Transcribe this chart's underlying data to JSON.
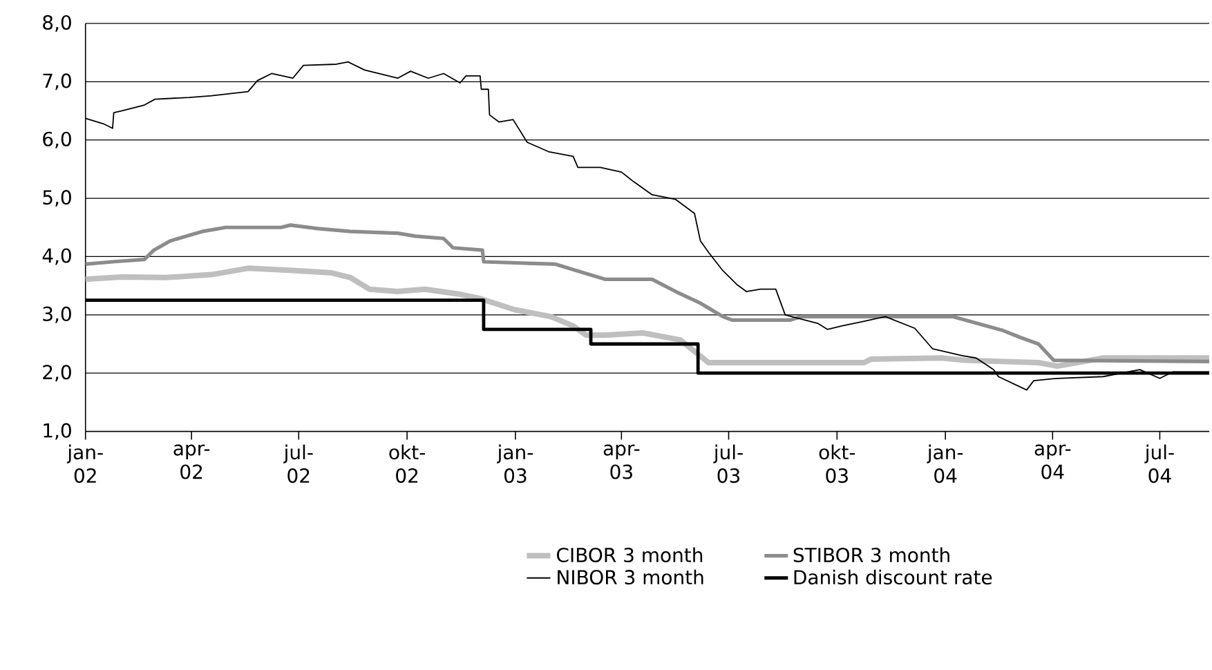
{
  "chart_data": {
    "type": "line",
    "xlim": [
      "2002-01-01",
      "2004-08-12"
    ],
    "ylim": [
      1,
      8
    ],
    "xticks": [
      {
        "value": "2002-01-01",
        "label": "jan-02"
      },
      {
        "value": "2002-04-01",
        "label": "apr-02"
      },
      {
        "value": "2002-07-01",
        "label": "jul-02"
      },
      {
        "value": "2002-10-01",
        "label": "okt-02"
      },
      {
        "value": "2003-01-01",
        "label": "jan-03"
      },
      {
        "value": "2003-04-01",
        "label": "apr-03"
      },
      {
        "value": "2003-07-01",
        "label": "jul-03"
      },
      {
        "value": "2003-10-01",
        "label": "okt-03"
      },
      {
        "value": "2004-01-01",
        "label": "jan-04"
      },
      {
        "value": "2004-04-01",
        "label": "apr-04"
      },
      {
        "value": "2004-07-01",
        "label": "jul-04"
      }
    ],
    "yticks": [
      {
        "value": 1,
        "label": "1,0"
      },
      {
        "value": 2,
        "label": "2,0"
      },
      {
        "value": 3,
        "label": "3,0"
      },
      {
        "value": 4,
        "label": "4,0"
      },
      {
        "value": 5,
        "label": "5,0"
      },
      {
        "value": 6,
        "label": "6,0"
      },
      {
        "value": 7,
        "label": "7,0"
      },
      {
        "value": 8,
        "label": "8,0"
      }
    ],
    "grid": "y",
    "legend": "bottom",
    "line_style": "solid",
    "marker": "none",
    "series": [
      {
        "name": "CIBOR 3 month",
        "color": "#bfbfbf",
        "x": [
          "2002-01-01",
          "2002-02-01",
          "2002-03-10",
          "2002-04-18",
          "2002-05-19",
          "2002-06-28",
          "2002-07-29",
          "2002-08-14",
          "2002-08-30",
          "2002-09-23",
          "2002-10-16",
          "2002-11-13",
          "2002-12-02",
          "2002-12-31",
          "2003-01-31",
          "2003-02-19",
          "2003-03-02",
          "2003-03-18",
          "2003-04-19",
          "2003-05-21",
          "2003-06-04",
          "2003-06-14",
          "2003-10-24",
          "2003-10-30",
          "2003-12-29",
          "2004-01-18",
          "2004-03-20",
          "2004-04-05",
          "2004-05-14",
          "2004-08-12"
        ],
        "values": [
          3.61,
          3.65,
          3.64,
          3.69,
          3.8,
          3.76,
          3.72,
          3.64,
          3.44,
          3.4,
          3.44,
          3.36,
          3.28,
          3.09,
          2.97,
          2.81,
          2.65,
          2.65,
          2.69,
          2.57,
          2.34,
          2.18,
          2.18,
          2.24,
          2.26,
          2.22,
          2.18,
          2.12,
          2.26,
          2.26
        ]
      },
      {
        "name": "STIBOR 3 month",
        "color": "#8c8c8c",
        "x": [
          "2002-01-01",
          "2002-01-24",
          "2002-02-20",
          "2002-02-28",
          "2002-03-14",
          "2002-04-10",
          "2002-04-30",
          "2002-06-16",
          "2002-06-24",
          "2002-07-17",
          "2002-08-14",
          "2002-09-23",
          "2002-10-08",
          "2002-11-01",
          "2002-11-09",
          "2002-12-04",
          "2002-12-05",
          "2003-02-04",
          "2003-02-28",
          "2003-03-18",
          "2003-04-27",
          "2003-05-17",
          "2003-06-07",
          "2003-06-26",
          "2003-07-04",
          "2003-08-22",
          "2003-09-01",
          "2004-01-07",
          "2004-02-19",
          "2004-03-05",
          "2004-03-20",
          "2004-04-02",
          "2004-08-12"
        ],
        "values": [
          3.87,
          3.91,
          3.95,
          4.11,
          4.27,
          4.43,
          4.5,
          4.5,
          4.54,
          4.48,
          4.43,
          4.4,
          4.35,
          4.31,
          4.15,
          4.11,
          3.91,
          3.87,
          3.72,
          3.61,
          3.61,
          3.4,
          3.2,
          2.97,
          2.91,
          2.91,
          2.97,
          2.97,
          2.73,
          2.61,
          2.5,
          2.22,
          2.2
        ]
      },
      {
        "name": "NIBOR 3 month",
        "color": "#000000",
        "x": [
          "2002-01-01",
          "2002-01-16",
          "2002-01-24",
          "2002-01-25",
          "2002-02-01",
          "2002-02-20",
          "2002-03-01",
          "2002-03-30",
          "2002-04-18",
          "2002-05-19",
          "2002-05-27",
          "2002-06-08",
          "2002-06-26",
          "2002-07-05",
          "2002-08-02",
          "2002-08-12",
          "2002-08-26",
          "2002-09-23",
          "2002-10-04",
          "2002-10-19",
          "2002-11-01",
          "2002-11-15",
          "2002-11-20",
          "2002-12-02",
          "2002-12-03",
          "2002-12-09",
          "2002-12-10",
          "2002-12-18",
          "2002-12-30",
          "2003-01-11",
          "2003-01-29",
          "2003-02-19",
          "2003-02-23",
          "2003-03-14",
          "2003-04-01",
          "2003-04-11",
          "2003-04-27",
          "2003-05-17",
          "2003-06-02",
          "2003-06-07",
          "2003-06-14",
          "2003-06-26",
          "2003-07-08",
          "2003-07-16",
          "2003-07-28",
          "2003-08-10",
          "2003-08-18",
          "2003-09-15",
          "2003-09-23",
          "2003-10-05",
          "2003-10-24",
          "2003-11-11",
          "2003-12-06",
          "2003-12-21",
          "2004-01-15",
          "2004-01-27",
          "2004-02-11",
          "2004-02-15",
          "2004-03-10",
          "2004-03-16",
          "2004-04-05",
          "2004-05-14",
          "2004-06-14",
          "2004-07-01",
          "2004-07-12",
          "2004-08-12"
        ],
        "values": [
          6.37,
          6.28,
          6.2,
          6.47,
          6.5,
          6.6,
          6.7,
          6.73,
          6.76,
          6.83,
          7.02,
          7.14,
          7.06,
          7.28,
          7.3,
          7.34,
          7.2,
          7.06,
          7.18,
          7.06,
          7.14,
          6.98,
          7.1,
          7.1,
          6.87,
          6.87,
          6.43,
          6.31,
          6.35,
          5.96,
          5.8,
          5.72,
          5.53,
          5.53,
          5.45,
          5.29,
          5.06,
          4.98,
          4.74,
          4.27,
          4.07,
          3.76,
          3.52,
          3.4,
          3.44,
          3.44,
          3.0,
          2.85,
          2.75,
          2.81,
          2.89,
          2.97,
          2.77,
          2.42,
          2.3,
          2.26,
          2.06,
          1.94,
          1.71,
          1.87,
          1.91,
          1.94,
          2.06,
          1.91,
          2.02,
          2.02
        ]
      },
      {
        "name": "Danish discount rate",
        "color": "#000000",
        "type": "step",
        "x": [
          "2002-01-01",
          "2002-12-05",
          "2003-03-06",
          "2003-06-05",
          "2004-08-12"
        ],
        "values": [
          3.25,
          2.75,
          2.5,
          2.0,
          2.0
        ]
      }
    ]
  }
}
